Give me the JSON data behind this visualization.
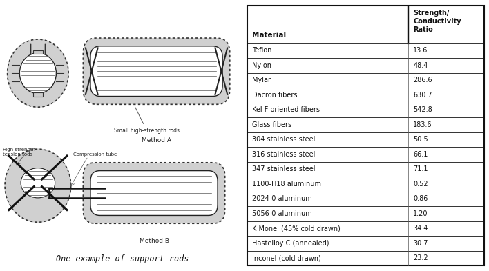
{
  "table_rows": [
    [
      "Teflon",
      "13.6"
    ],
    [
      "Nylon",
      "48.4"
    ],
    [
      "Mylar",
      "286.6"
    ],
    [
      "Dacron fibers",
      "630.7"
    ],
    [
      "Kel F oriented fibers",
      "542.8"
    ],
    [
      "Glass fibers",
      "183.6"
    ],
    [
      "304 stainless steel",
      "50.5"
    ],
    [
      "316 stainless steel",
      "66.1"
    ],
    [
      "347 stainless steel",
      "71.1"
    ],
    [
      "1100-H18 aluminum",
      "0.52"
    ],
    [
      "2024-0 aluminum",
      "0.86"
    ],
    [
      "5056-0 aluminum",
      "1.20"
    ],
    [
      "K Monel (45% cold drawn)",
      "34.4"
    ],
    [
      "Hastelloy C (annealed)",
      "30.7"
    ],
    [
      "Inconel (cold drawn)",
      "23.2"
    ]
  ],
  "caption": "One example of support rods",
  "bg_color": "#ffffff",
  "figsize": [
    7.08,
    3.93
  ],
  "dpi": 100
}
